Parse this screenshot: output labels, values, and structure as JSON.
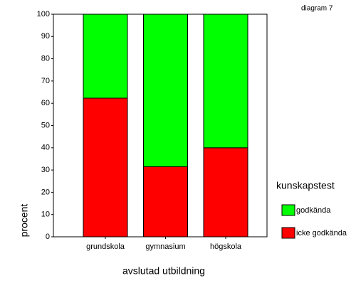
{
  "chart_data": {
    "type": "stacked_bar",
    "title": "diagram 7",
    "x_label": "avslutad utbildning",
    "y_label": "procent",
    "categories": [
      "grundskola",
      "gymnasium",
      "högskola"
    ],
    "series": [
      {
        "name": "icke godkända",
        "color": "#ff0000",
        "values": [
          62.3,
          31.5,
          40
        ]
      },
      {
        "name": "godkända",
        "color": "#00ff00",
        "values": [
          37.7,
          68.5,
          60
        ]
      }
    ],
    "legend_title": "kunskapstest",
    "ylim": [
      0,
      100
    ],
    "yticks": [
      0,
      10,
      20,
      30,
      40,
      50,
      60,
      70,
      80,
      90,
      100
    ]
  }
}
